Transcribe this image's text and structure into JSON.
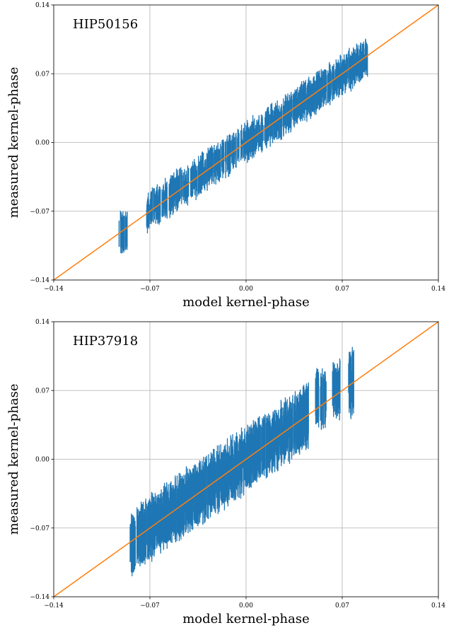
{
  "chart_data": [
    {
      "type": "scatter",
      "title": "HIP50156",
      "xlabel": "model kernel-phase",
      "ylabel": "measured kernel-phase",
      "xlim": [
        -0.14,
        0.14
      ],
      "ylim": [
        -0.14,
        0.14
      ],
      "xticks": [
        "-0.14",
        "-0.07",
        "0.00",
        "0.07",
        "0.14"
      ],
      "yticks": [
        "-0.14",
        "-0.07",
        "0.00",
        "0.07",
        "0.14"
      ],
      "grid": true,
      "colors": {
        "points": "#1f77b4",
        "line": "#ff7f0e"
      },
      "reference_line": {
        "label": "y = x",
        "slope": 1,
        "intercept": 0
      },
      "clusters": [
        {
          "x_range": [
            -0.0925,
            -0.0865
          ],
          "center_x": -0.089,
          "center_y": -0.0905,
          "spread_y": 0.022,
          "noise": 0.004,
          "n": 32
        },
        {
          "x_range": [
            -0.0725,
            0.0885
          ],
          "slope": 0.98,
          "spread_y": 0.0175,
          "noise": 0.006,
          "n": 900
        }
      ]
    },
    {
      "type": "scatter",
      "title": "HIP37918",
      "xlabel": "model kernel-phase",
      "ylabel": "measured kernel-phase",
      "xlim": [
        -0.14,
        0.14
      ],
      "ylim": [
        -0.14,
        0.14
      ],
      "xticks": [
        "-0.14",
        "-0.07",
        "0.00",
        "0.07",
        "0.14"
      ],
      "yticks": [
        "-0.14",
        "-0.07",
        "0.00",
        "0.07",
        "0.14"
      ],
      "grid": true,
      "colors": {
        "points": "#1f77b4",
        "line": "#ff7f0e"
      },
      "reference_line": {
        "label": "y = x",
        "slope": 1,
        "intercept": 0
      },
      "clusters": [
        {
          "x_range": [
            -0.0845,
            -0.0805
          ],
          "center_x": -0.0825,
          "center_y": -0.0855,
          "spread_y": 0.03,
          "noise": 0.005,
          "n": 30
        },
        {
          "x_range": [
            -0.0795,
            0.0455
          ],
          "slope": 1.0,
          "spread_y": 0.029,
          "noise": 0.008,
          "n": 1000
        },
        {
          "x_range": [
            0.0505,
            0.0585
          ],
          "center_x": 0.0545,
          "center_y": 0.0625,
          "spread_y": 0.028,
          "noise": 0.006,
          "n": 45
        },
        {
          "x_range": [
            0.0625,
            0.0685
          ],
          "center_x": 0.0655,
          "center_y": 0.072,
          "spread_y": 0.028,
          "noise": 0.006,
          "n": 40
        },
        {
          "x_range": [
            0.0745,
            0.0785
          ],
          "center_x": 0.0765,
          "center_y": 0.078,
          "spread_y": 0.032,
          "noise": 0.006,
          "n": 30
        }
      ]
    }
  ]
}
